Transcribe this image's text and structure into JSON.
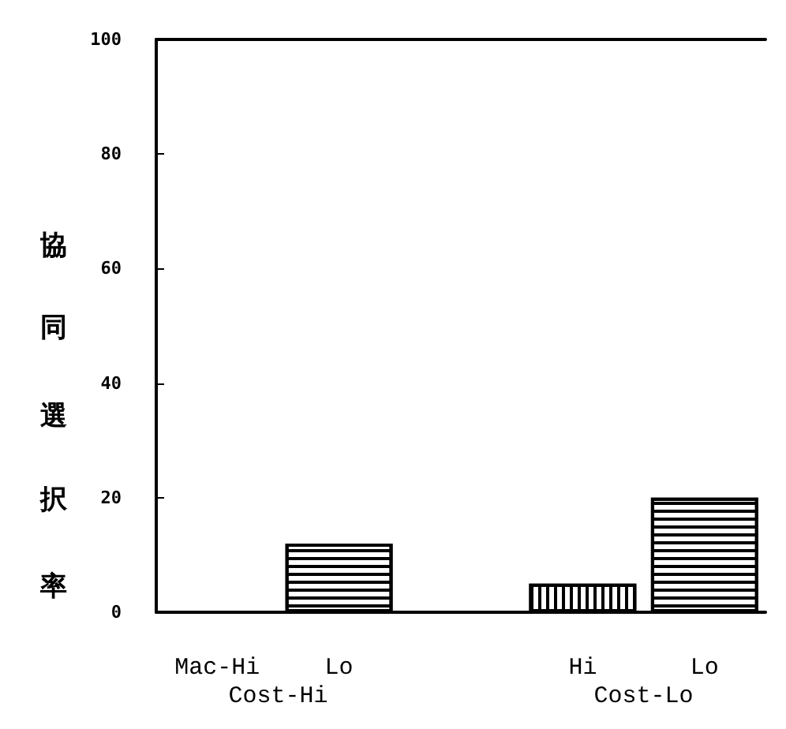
{
  "chart_data": {
    "type": "bar",
    "ylabel": "協同選択率",
    "categories": [
      "Mac-Hi",
      "Lo",
      null,
      "Hi",
      "Lo"
    ],
    "values": [
      0,
      12,
      null,
      5,
      20
    ],
    "color": "#000000",
    "ylim": [
      0,
      100
    ],
    "yticks": [
      0,
      20,
      40,
      60,
      80,
      100
    ],
    "annotations": [
      "Cost-Hi",
      "Cost-Lo"
    ],
    "grid": false
  }
}
